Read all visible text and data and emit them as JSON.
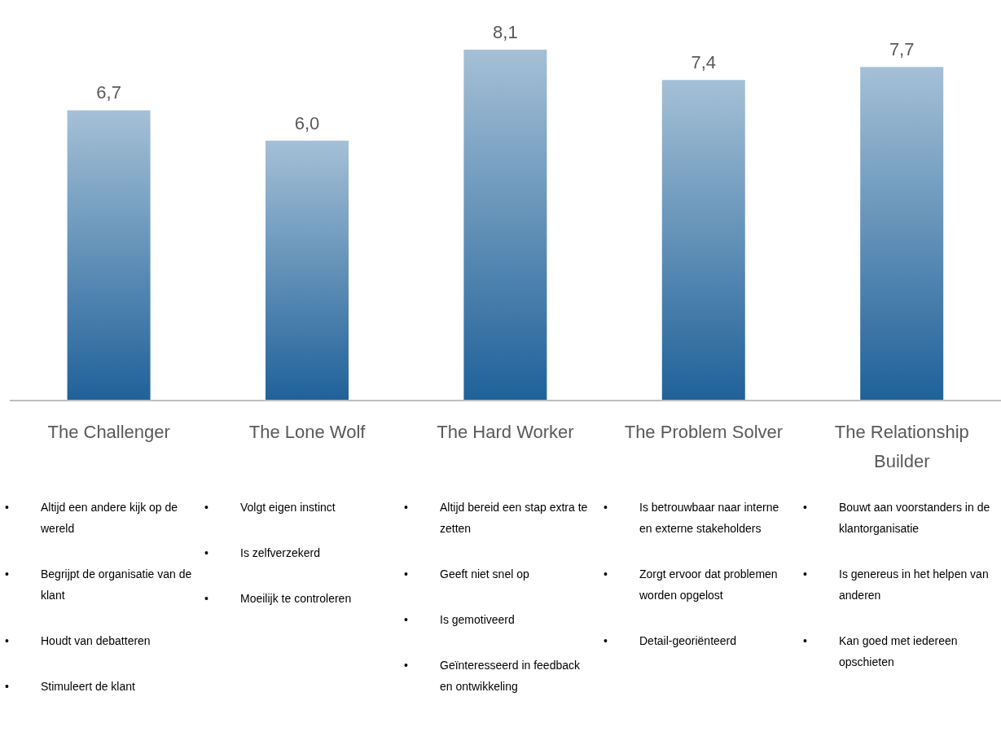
{
  "chart_data": {
    "type": "bar",
    "categories": [
      "The Challenger",
      "The Lone Wolf",
      "The Hard Worker",
      "The Problem Solver",
      "The Relationship Builder"
    ],
    "values": [
      6.7,
      6.0,
      8.1,
      7.4,
      7.7
    ],
    "value_labels": [
      "6,7",
      "6,0",
      "8,1",
      "7,4",
      "7,7"
    ],
    "color": "#1f6199",
    "annotations": [
      "• Altijd een andere kijk op de wereld\n• Begrijpt de organisatie van de klant\n• Houdt van debatteren\n• Stimuleert de klant",
      "• Volgt eigen instinct\n• Is zelfverzekerd\n• Moeilijk te controleren",
      "• Altijd bereid een stap extra te zetten\n• Geeft niet snel op\n• Is gemotiveerd\n• Geïnteresseerd in feedback en ontwikkeling",
      "• Is betrouwbaar naar interne en externe stakeholders\n• Zorgt ervoor dat problemen worden opgelost\n• Detail-georiënteerd",
      "• Bouwt aan voorstanders in de klantorganisatie\n• Is genereus in het helpen van anderen\n• Kan goed met iedereen opschieten"
    ]
  }
}
